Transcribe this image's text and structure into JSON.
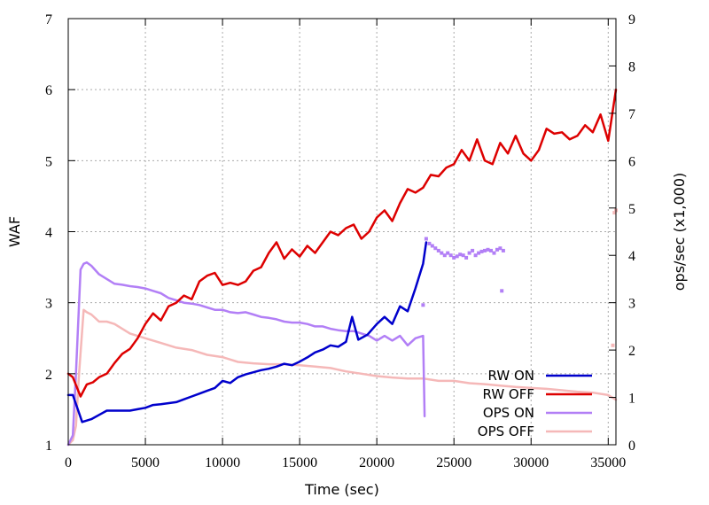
{
  "chart_data": {
    "type": "line",
    "xlabel": "Time (sec)",
    "ylabel": "WAF",
    "y2label": "ops/sec (x1,000)",
    "xlim": [
      0,
      35500
    ],
    "ylim": [
      1,
      7
    ],
    "y2lim": [
      0,
      9
    ],
    "x_ticks": [
      0,
      5000,
      10000,
      15000,
      20000,
      25000,
      30000,
      35000
    ],
    "y_ticks": [
      1,
      2,
      3,
      4,
      5,
      6,
      7
    ],
    "y2_ticks": [
      0,
      1,
      2,
      3,
      4,
      5,
      6,
      7,
      8,
      9
    ],
    "grid": true,
    "legend_position": "bottom-right",
    "series": [
      {
        "name": "RW ON",
        "axis": "y",
        "color": "#0000cc",
        "x": [
          0,
          300,
          900,
          1500,
          2000,
          2500,
          3000,
          4000,
          4500,
          5000,
          5500,
          6000,
          7000,
          7500,
          8000,
          8500,
          9000,
          9500,
          10000,
          10500,
          11000,
          11500,
          12000,
          12500,
          13000,
          13500,
          14000,
          14500,
          15000,
          15500,
          16000,
          16500,
          17000,
          17500,
          18000,
          18400,
          18800,
          19400,
          20000,
          20500,
          21000,
          21500,
          22000,
          22500,
          23000,
          23200
        ],
        "values": [
          1.7,
          1.7,
          1.32,
          1.36,
          1.42,
          1.48,
          1.48,
          1.48,
          1.5,
          1.52,
          1.56,
          1.57,
          1.6,
          1.64,
          1.68,
          1.72,
          1.76,
          1.8,
          1.9,
          1.87,
          1.95,
          1.99,
          2.02,
          2.05,
          2.07,
          2.1,
          2.14,
          2.12,
          2.17,
          2.23,
          2.3,
          2.34,
          2.4,
          2.38,
          2.45,
          2.8,
          2.48,
          2.55,
          2.7,
          2.8,
          2.7,
          2.95,
          2.88,
          3.2,
          3.55,
          3.85
        ]
      },
      {
        "name": "RW OFF",
        "axis": "y",
        "color": "#dd0000",
        "x": [
          0,
          300,
          800,
          1200,
          1600,
          2000,
          2500,
          3000,
          3500,
          4000,
          4500,
          5000,
          5500,
          6000,
          6500,
          7000,
          7500,
          8000,
          8500,
          9000,
          9500,
          10000,
          10500,
          11000,
          11500,
          12000,
          12500,
          13000,
          13500,
          14000,
          14500,
          15000,
          15500,
          16000,
          16500,
          17000,
          17500,
          18000,
          18500,
          19000,
          19500,
          20000,
          20500,
          21000,
          21500,
          22000,
          22500,
          23000,
          23500,
          24000,
          24500,
          25000,
          25500,
          26000,
          26500,
          27000,
          27500,
          28000,
          28500,
          29000,
          29500,
          30000,
          30500,
          31000,
          31500,
          32000,
          32500,
          33000,
          33500,
          34000,
          34500,
          35000,
          35500
        ],
        "values": [
          2.0,
          1.95,
          1.68,
          1.85,
          1.88,
          1.95,
          2.0,
          2.15,
          2.28,
          2.35,
          2.5,
          2.7,
          2.85,
          2.75,
          2.95,
          3.0,
          3.1,
          3.05,
          3.3,
          3.38,
          3.42,
          3.25,
          3.28,
          3.25,
          3.3,
          3.45,
          3.5,
          3.7,
          3.85,
          3.62,
          3.75,
          3.65,
          3.8,
          3.7,
          3.85,
          4.0,
          3.95,
          4.05,
          4.1,
          3.9,
          4.0,
          4.2,
          4.3,
          4.15,
          4.4,
          4.6,
          4.55,
          4.62,
          4.8,
          4.78,
          4.9,
          4.95,
          5.15,
          5.0,
          5.3,
          5.0,
          4.95,
          5.25,
          5.1,
          5.35,
          5.1,
          5.0,
          5.15,
          5.45,
          5.38,
          5.4,
          5.3,
          5.35,
          5.5,
          5.4,
          5.65,
          5.28,
          6.0
        ]
      },
      {
        "name": "OPS ON",
        "axis": "y2",
        "color": "#b27ff6",
        "x": [
          0,
          300,
          500,
          800,
          1000,
          1200,
          1500,
          2000,
          2500,
          3000,
          3500,
          4000,
          4500,
          5000,
          5500,
          6000,
          6500,
          7000,
          7500,
          8000,
          8500,
          9000,
          9500,
          10000,
          10500,
          11000,
          11500,
          12000,
          12500,
          13000,
          13500,
          14000,
          14500,
          15000,
          15500,
          16000,
          16500,
          17000,
          17500,
          18000,
          18500,
          19000,
          19500,
          20000,
          20500,
          21000,
          21500,
          22000,
          22500,
          23000,
          23100
        ],
        "values": [
          0.0,
          0.2,
          1.5,
          3.7,
          3.82,
          3.85,
          3.78,
          3.6,
          3.5,
          3.4,
          3.38,
          3.35,
          3.33,
          3.3,
          3.25,
          3.2,
          3.1,
          3.05,
          3.0,
          2.98,
          2.95,
          2.9,
          2.85,
          2.85,
          2.8,
          2.78,
          2.8,
          2.75,
          2.7,
          2.68,
          2.65,
          2.6,
          2.58,
          2.58,
          2.55,
          2.5,
          2.5,
          2.45,
          2.42,
          2.4,
          2.4,
          2.35,
          2.3,
          2.2,
          2.3,
          2.2,
          2.3,
          2.1,
          2.25,
          2.3,
          0.6
        ]
      },
      {
        "name": "OPS OFF",
        "axis": "y2",
        "color": "#f5b8b8",
        "x": [
          0,
          300,
          500,
          700,
          1000,
          1200,
          1500,
          2000,
          2500,
          3000,
          4000,
          5000,
          6000,
          7000,
          8000,
          9000,
          10000,
          11000,
          12000,
          13000,
          14000,
          15000,
          16000,
          17000,
          18000,
          19000,
          20000,
          21000,
          22000,
          23000,
          24000,
          25000,
          26000,
          27000,
          28000,
          29000,
          30000,
          31000,
          32000,
          33000,
          34000,
          35000,
          35500
        ],
        "values": [
          0.0,
          0.1,
          0.4,
          1.5,
          2.85,
          2.8,
          2.75,
          2.6,
          2.6,
          2.55,
          2.35,
          2.25,
          2.15,
          2.05,
          2.0,
          1.9,
          1.85,
          1.75,
          1.72,
          1.7,
          1.7,
          1.68,
          1.65,
          1.62,
          1.55,
          1.5,
          1.45,
          1.42,
          1.4,
          1.4,
          1.35,
          1.35,
          1.3,
          1.28,
          1.25,
          1.22,
          1.2,
          1.18,
          1.15,
          1.12,
          1.1,
          1.05,
          0.95
        ]
      }
    ],
    "scatter_overlays": [
      {
        "name": "OPS ON",
        "axis": "y2",
        "color": "#b27ff6",
        "x": [
          23200,
          23400,
          23600,
          23800,
          24000,
          24200,
          24400,
          24600,
          24800,
          25000,
          25200,
          25400,
          25600,
          25800,
          26000,
          26200,
          26400,
          26600,
          26800,
          27000,
          27200,
          27400,
          27600,
          27800,
          28000,
          28200,
          23000,
          28100
        ],
        "values": [
          4.35,
          4.25,
          4.2,
          4.15,
          4.1,
          4.05,
          4.0,
          4.05,
          4.0,
          3.95,
          3.98,
          4.02,
          4.0,
          3.95,
          4.05,
          4.1,
          4.0,
          4.05,
          4.08,
          4.1,
          4.12,
          4.1,
          4.05,
          4.12,
          4.15,
          4.1,
          2.95,
          3.25
        ]
      },
      {
        "name": "OPS OFF",
        "axis": "y2",
        "color": "#f5b8b8",
        "x": [
          35400,
          35500,
          35300
        ],
        "values": [
          4.9,
          4.95,
          2.1
        ]
      }
    ]
  }
}
